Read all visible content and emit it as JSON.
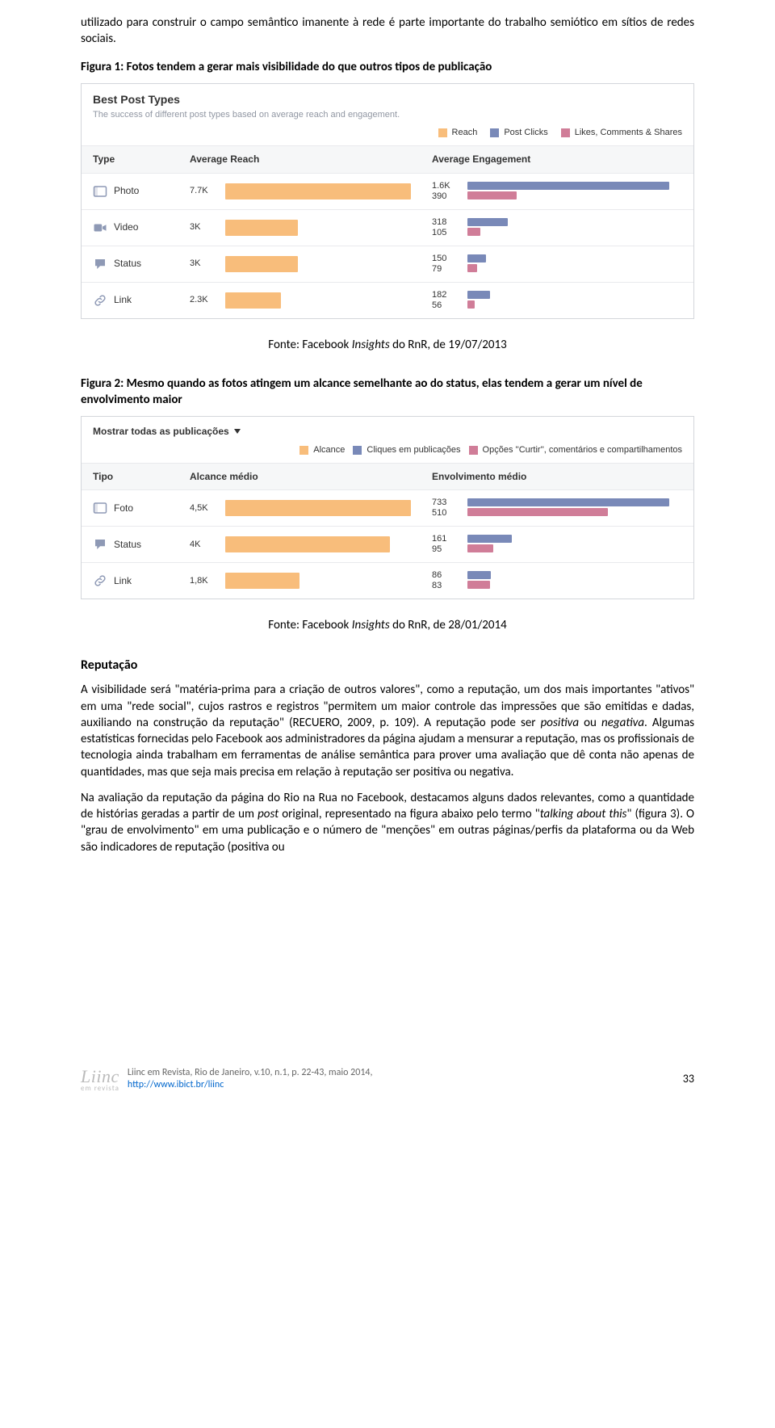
{
  "body": {
    "intro": "utilizado para construir o campo semântico imanente à rede é parte importante do trabalho semiótico em sítios de redes sociais.",
    "fig1_caption": "Figura 1: Fotos tendem a gerar mais visibilidade do que outros tipos de publicação",
    "fig1_source_prefix": "Fonte: Facebook ",
    "fig1_source_em": "Insights",
    "fig1_source_suffix": " do RnR, de 19/07/2013",
    "fig2_caption": "Figura 2: Mesmo quando as fotos atingem um alcance semelhante ao do status, elas tendem a gerar um nível de envolvimento maior",
    "fig2_source_prefix": "Fonte: Facebook ",
    "fig2_source_em": "Insights",
    "fig2_source_suffix": " do RnR, de 28/01/2014",
    "section": "Reputação",
    "p1a": "A visibilidade será \"matéria-prima para a criação de outros valores\", como a reputação, um dos mais importantes \"ativos\" em uma \"rede social\", cujos rastros e registros \"permitem um maior controle das impressões que são emitidas e dadas, auxiliando na construção da reputação\" (RECUERO, 2009, p. 109). A reputação pode ser ",
    "p1b": "positiva",
    "p1c": " ou ",
    "p1d": "negativa",
    "p1e": ". Algumas estatísticas fornecidas pelo Facebook aos administradores da página ajudam a mensurar a reputação, mas os profissionais de tecnologia ainda trabalham em ferramentas de análise semântica para prover uma avaliação que dê conta não apenas de quantidades, mas que seja mais precisa em relação à reputação ser positiva ou negativa.",
    "p2a": "Na avaliação da reputação da página do Rio na Rua no Facebook, destacamos alguns dados relevantes, como a quantidade de histórias geradas a partir de um ",
    "p2b": "post",
    "p2c": " original, representado na figura abaixo pelo termo \"",
    "p2d": "talking about this",
    "p2e": "\" (figura 3).  O \"grau de envolvimento\" em uma publicação e o número de \"menções\" em outras páginas/perfis da plataforma ou da Web são indicadores de reputação (positiva ou"
  },
  "colors": {
    "reach": "#f8bd7b",
    "clicks": "#7989b8",
    "likes": "#d07d98",
    "border": "#d3d6db",
    "header_bg": "#f6f7f8",
    "muted": "#9197a3"
  },
  "fig1": {
    "title": "Best Post Types",
    "subtitle": "The success of different post types based on average reach and engagement.",
    "legend": {
      "a": "Reach",
      "b": "Post Clicks",
      "c": "Likes, Comments & Shares"
    },
    "head": {
      "c1": "Type",
      "c2": "Average Reach",
      "c3": "Average Engagement"
    },
    "reach_max": 7.7,
    "eng_max": 1600,
    "rows": [
      {
        "icon": "photo",
        "label": "Photo",
        "reach_label": "7.7K",
        "reach": 7.7,
        "e1": "1.6K",
        "e1v": 1600,
        "e2": "390",
        "e2v": 390
      },
      {
        "icon": "video",
        "label": "Video",
        "reach_label": "3K",
        "reach": 3.0,
        "e1": "318",
        "e1v": 318,
        "e2": "105",
        "e2v": 105
      },
      {
        "icon": "status",
        "label": "Status",
        "reach_label": "3K",
        "reach": 3.0,
        "e1": "150",
        "e1v": 150,
        "e2": "79",
        "e2v": 79
      },
      {
        "icon": "link",
        "label": "Link",
        "reach_label": "2.3K",
        "reach": 2.3,
        "e1": "182",
        "e1v": 182,
        "e2": "56",
        "e2v": 56
      }
    ]
  },
  "fig2": {
    "dropdown": "Mostrar todas as publicações",
    "legend": {
      "a": "Alcance",
      "b": "Cliques em publicações",
      "c": "Opções ''Curtir'', comentários e compartilhamentos"
    },
    "head": {
      "c1": "Tipo",
      "c2": "Alcance médio",
      "c3": "Envolvimento médio"
    },
    "reach_max": 4.5,
    "eng_max": 733,
    "rows": [
      {
        "icon": "photo",
        "label": "Foto",
        "reach_label": "4,5K",
        "reach": 4.5,
        "e1": "733",
        "e1v": 733,
        "e2": "510",
        "e2v": 510
      },
      {
        "icon": "status",
        "label": "Status",
        "reach_label": "4K",
        "reach": 4.0,
        "e1": "161",
        "e1v": 161,
        "e2": "95",
        "e2v": 95
      },
      {
        "icon": "link",
        "label": "Link",
        "reach_label": "1,8K",
        "reach": 1.8,
        "e1": "86",
        "e1v": 86,
        "e2": "83",
        "e2v": 83
      }
    ]
  },
  "footer": {
    "logo": "Liinc",
    "sub": "em revista",
    "line1": "Liinc em Revista, Rio de Janeiro, v.10, n.1, p. 22-43, maio 2014,",
    "line2": "http://www.ibict.br/liinc",
    "page": "33"
  }
}
